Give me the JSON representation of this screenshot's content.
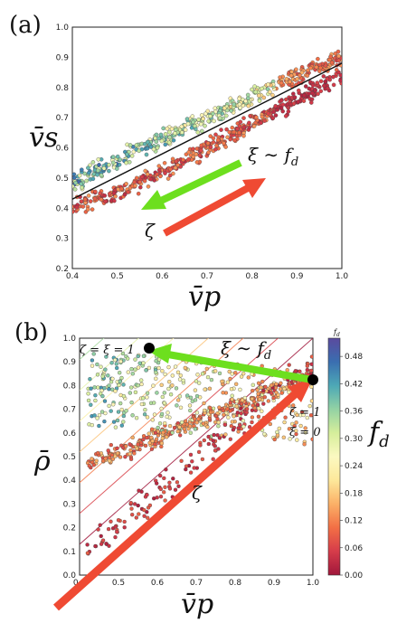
{
  "panels": [
    {
      "label": "(a)",
      "ylabel": "v̄s",
      "xlabel": "v̄p"
    },
    {
      "label": "(b)",
      "ylabel": "ρ̄",
      "xlabel": "v̄p"
    }
  ],
  "colors": {
    "arrow_green": "#6ddf1e",
    "arrow_red": "#ef4a33",
    "fit_line": "#111111",
    "colormap": [
      "#a0173b",
      "#d63c4a",
      "#f26f45",
      "#fbb067",
      "#fde89a",
      "#fbf9c1",
      "#d6ee9b",
      "#93d2a4",
      "#4da8b6",
      "#3a6eb0",
      "#5a4a9e"
    ]
  },
  "chart_data": [
    {
      "type": "scatter",
      "panel": "(a)",
      "xlabel": "v̄p",
      "ylabel": "v̄s",
      "xlim": [
        0.4,
        1.0
      ],
      "ylim": [
        0.2,
        1.0
      ],
      "x_ticks": [
        "0.4",
        "0.5",
        "0.6",
        "0.7",
        "0.8",
        "0.9",
        "1.0"
      ],
      "y_ticks": [
        "0.2",
        "0.3",
        "0.4",
        "0.5",
        "0.6",
        "0.7",
        "0.8",
        "0.9",
        "1.0"
      ],
      "color_variable": "f_d",
      "grid": false,
      "fit_line": {
        "x": [
          0.4,
          1.0
        ],
        "y": [
          0.43,
          0.88
        ]
      },
      "point_clouds": [
        {
          "group": "high f_d (upper band)",
          "trend": {
            "x": [
              0.4,
              0.5,
              0.6,
              0.7,
              0.8,
              0.9,
              1.0
            ],
            "y": [
              0.48,
              0.56,
              0.63,
              0.7,
              0.77,
              0.84,
              0.9
            ]
          }
        },
        {
          "group": "low f_d (lower band)",
          "trend": {
            "x": [
              0.4,
              0.5,
              0.6,
              0.7,
              0.8,
              0.9,
              1.0
            ],
            "y": [
              0.4,
              0.45,
              0.52,
              0.6,
              0.68,
              0.76,
              0.84
            ]
          }
        }
      ],
      "annotations": [
        {
          "text": "ξ ∼ f",
          "sub": "d",
          "arrow": "green",
          "direction": "toward lower v̄p, higher v̄s"
        },
        {
          "text": "ζ",
          "sub": "",
          "arrow": "red",
          "direction": "toward higher v̄p, higher v̄s"
        }
      ]
    },
    {
      "type": "scatter",
      "panel": "(b)",
      "xlabel": "v̄p",
      "ylabel": "ρ̄",
      "xlim": [
        0.4,
        1.0
      ],
      "ylim": [
        0.0,
        1.0
      ],
      "x_ticks": [
        "0.4",
        "0.5",
        "0.6",
        "0.7",
        "0.8",
        "0.9",
        "1.0"
      ],
      "y_ticks": [
        "0.0",
        "0.1",
        "0.2",
        "0.3",
        "0.4",
        "0.5",
        "0.6",
        "0.7",
        "0.8",
        "0.9",
        "1.0"
      ],
      "color_variable": "f_d",
      "grid": false,
      "colorbar": {
        "label": "f",
        "label_sub": "d",
        "ticks": [
          "0.00",
          "0.06",
          "0.12",
          "0.18",
          "0.24",
          "0.30",
          "0.36",
          "0.42",
          "0.48"
        ],
        "range": [
          0.0,
          0.52
        ]
      },
      "contour_lines": {
        "count": 10,
        "slope": 1.45
      },
      "markers": [
        {
          "name": "top-left",
          "x": 0.57,
          "y": 0.96,
          "labels": [
            "ζ = ξ = 1"
          ]
        },
        {
          "name": "top-right",
          "x": 1.0,
          "y": 0.85,
          "labels": [
            "ζ = 1",
            "ξ = 0"
          ]
        }
      ],
      "annotations": [
        {
          "text": "ξ ∼ f",
          "sub": "d",
          "arrow": "green"
        },
        {
          "text": "ζ",
          "sub": "",
          "arrow": "red"
        }
      ]
    }
  ]
}
